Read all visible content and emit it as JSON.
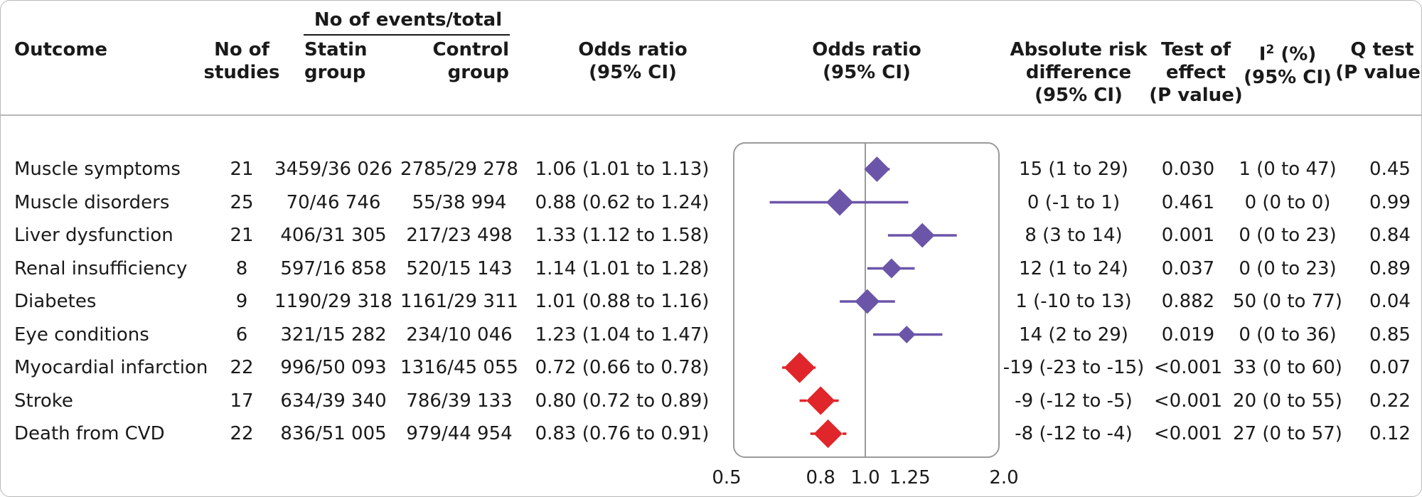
{
  "headers": {
    "outcome": "Outcome",
    "no_of_studies": [
      "No of",
      "studies"
    ],
    "events_group": "No of events/total",
    "statin_group": [
      "Statin",
      "group"
    ],
    "control_group": [
      "Control",
      "group"
    ],
    "odds_ratio_text": [
      "Odds ratio",
      "(95% CI)"
    ],
    "odds_ratio_plot": [
      "Odds ratio",
      "(95% CI)"
    ],
    "absolute_risk": [
      "Absolute risk",
      "difference",
      "(95% CI)"
    ],
    "test_of_effect": [
      "Test of",
      "effect",
      "(P value)"
    ],
    "i2_main": "I",
    "i2_sup": "2",
    "i2_rest": " (%)",
    "i2_ci": "(95% CI)",
    "q_test": [
      "Q test",
      "(P value)"
    ]
  },
  "rows": [
    {
      "outcome": "Muscle symptoms",
      "studies": "21",
      "statin": "3459/36 026",
      "control": "2785/29 278",
      "or_text": "1.06 (1.01 to 1.13)",
      "ard": "15 (1 to 29)",
      "p": "0.030",
      "i2": "1 (0 to 47)",
      "q": "0.45"
    },
    {
      "outcome": "Muscle disorders",
      "studies": "25",
      "statin": "70/46 746",
      "control": "55/38 994",
      "or_text": "0.88 (0.62 to 1.24)",
      "ard": "0 (-1 to 1)",
      "p": "0.461",
      "i2": "0 (0 to 0)",
      "q": "0.99"
    },
    {
      "outcome": "Liver dysfunction",
      "studies": "21",
      "statin": "406/31 305",
      "control": "217/23 498",
      "or_text": "1.33 (1.12 to 1.58)",
      "ard": "8 (3 to 14)",
      "p": "0.001",
      "i2": "0 (0 to 23)",
      "q": "0.84"
    },
    {
      "outcome": "Renal insufficiency",
      "studies": "8",
      "statin": "597/16 858",
      "control": "520/15 143",
      "or_text": "1.14 (1.01 to 1.28)",
      "ard": "12 (1 to 24)",
      "p": "0.037",
      "i2": "0 (0 to 23)",
      "q": "0.89"
    },
    {
      "outcome": "Diabetes",
      "studies": "9",
      "statin": "1190/29 318",
      "control": "1161/29 311",
      "or_text": "1.01 (0.88 to 1.16)",
      "ard": "1 (-10 to 13)",
      "p": "0.882",
      "i2": "50 (0 to 77)",
      "q": "0.04"
    },
    {
      "outcome": "Eye conditions",
      "studies": "6",
      "statin": "321/15 282",
      "control": "234/10 046",
      "or_text": "1.23 (1.04 to 1.47)",
      "ard": "14 (2 to 29)",
      "p": "0.019",
      "i2": "0 (0 to 36)",
      "q": "0.85"
    },
    {
      "outcome": "Myocardial infarction",
      "studies": "22",
      "statin": "996/50 093",
      "control": "1316/45 055",
      "or_text": "0.72 (0.66 to 0.78)",
      "ard": "-19 (-23 to -15)",
      "p": "<0.001",
      "i2": "33 (0 to 60)",
      "q": "0.07"
    },
    {
      "outcome": "Stroke",
      "studies": "17",
      "statin": "634/39 340",
      "control": "786/39 133",
      "or_text": "0.80 (0.72 to 0.89)",
      "ard": "-9 (-12 to -5)",
      "p": "<0.001",
      "i2": "20 (0 to 55)",
      "q": "0.22"
    },
    {
      "outcome": "Death from CVD",
      "studies": "22",
      "statin": "836/51 005",
      "control": "979/44 954",
      "or_text": "0.83 (0.76 to 0.91)",
      "ard": "-8 (-12 to -4)",
      "p": "<0.001",
      "i2": "27 (0 to 57)",
      "q": "0.12"
    }
  ],
  "chart_data": {
    "type": "forest",
    "x_scale": "log",
    "xlim": [
      0.5,
      2.0
    ],
    "reference_line": 1.0,
    "x_ticks": [
      0.5,
      0.8,
      1.0,
      1.25,
      2.0
    ],
    "x_tick_labels": [
      "0.5",
      "0.8",
      "1.0",
      "1.25",
      "2.0"
    ],
    "categories": [
      "Muscle symptoms",
      "Muscle disorders",
      "Liver dysfunction",
      "Renal insufficiency",
      "Diabetes",
      "Eye conditions",
      "Myocardial infarction",
      "Stroke",
      "Death from CVD"
    ],
    "estimates": [
      1.06,
      0.88,
      1.33,
      1.14,
      1.01,
      1.23,
      0.72,
      0.8,
      0.83
    ],
    "ci_lower": [
      1.01,
      0.62,
      1.12,
      1.01,
      0.88,
      1.04,
      0.66,
      0.72,
      0.76
    ],
    "ci_upper": [
      1.13,
      1.24,
      1.58,
      1.28,
      1.16,
      1.47,
      0.78,
      0.89,
      0.91
    ],
    "marker_weight": [
      0.9,
      1.0,
      0.85,
      0.55,
      0.85,
      0.4,
      1.25,
      1.1,
      1.1
    ],
    "colors": [
      "#6b55a8",
      "#6b55a8",
      "#6b55a8",
      "#6b55a8",
      "#6b55a8",
      "#6b55a8",
      "#e0262a",
      "#e0262a",
      "#e0262a"
    ],
    "reference_line_color": "#9a9a9a"
  }
}
